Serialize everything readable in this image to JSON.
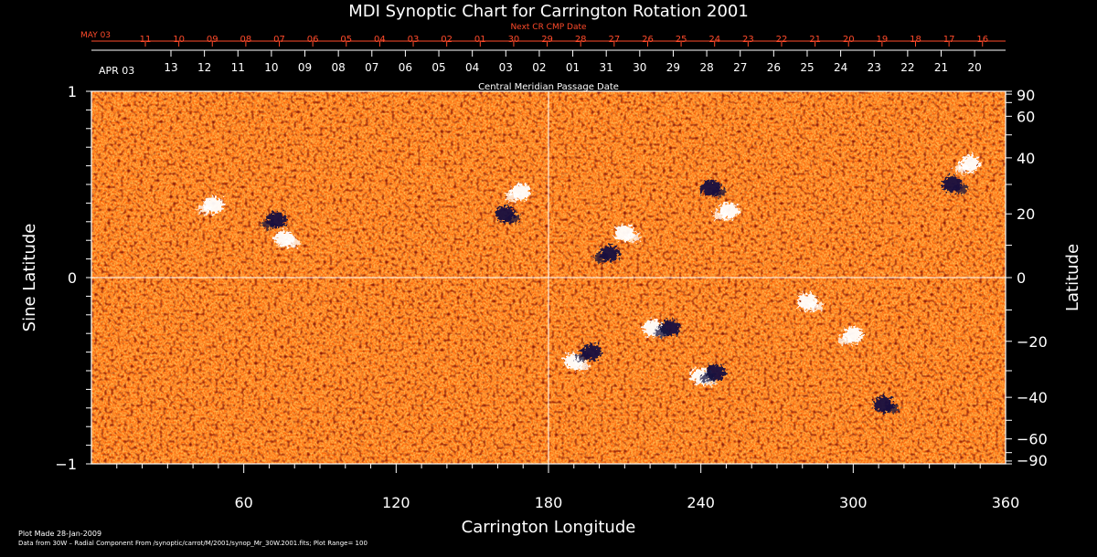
{
  "chart_data": {
    "type": "heatmap",
    "title": "MDI Synoptic Chart for Carrington Rotation 2001",
    "xlabel": "Carrington Longitude",
    "ylabel_left": "Sine Latitude",
    "ylabel_right": "Latitude",
    "xlim": [
      0,
      360
    ],
    "ylim": [
      -1,
      1
    ],
    "x_ticks": [
      "60",
      "120",
      "180",
      "240",
      "300",
      "360"
    ],
    "y_ticks_left": [
      "1",
      "0",
      "−1"
    ],
    "y_ticks_right": [
      "90",
      "60",
      "40",
      "20",
      "0",
      "−20",
      "−40",
      "−60",
      "−90"
    ],
    "next_cr_axis": {
      "label": "Next CR CMP Date",
      "month_label": "MAY 03",
      "ticks": [
        "11",
        "10",
        "09",
        "08",
        "07",
        "06",
        "05",
        "04",
        "03",
        "02",
        "01",
        "30",
        "29",
        "28",
        "27",
        "26",
        "25",
        "24",
        "23",
        "22",
        "21",
        "20",
        "19",
        "18",
        "17",
        "16"
      ]
    },
    "cmp_axis": {
      "label": "Central Meridian Passage Date",
      "month_label": "APR 03",
      "ticks": [
        "13",
        "12",
        "11",
        "10",
        "09",
        "08",
        "07",
        "06",
        "05",
        "04",
        "03",
        "02",
        "01",
        "31",
        "30",
        "29",
        "28",
        "27",
        "26",
        "25",
        "24",
        "23",
        "22",
        "21",
        "20"
      ]
    },
    "grid": true,
    "colormap": [
      "#15123f",
      "#8b1a08",
      "#d83a02",
      "#ff6a0c",
      "#ffb24a",
      "#ffffff"
    ],
    "plot_range": 100,
    "active_regions": [
      {
        "lon": 73,
        "sinlat": 0.31,
        "polarity": "negative"
      },
      {
        "lon": 76,
        "sinlat": 0.21,
        "polarity": "positive"
      },
      {
        "lon": 48,
        "sinlat": 0.39,
        "polarity": "positive"
      },
      {
        "lon": 163,
        "sinlat": 0.34,
        "polarity": "negative"
      },
      {
        "lon": 169,
        "sinlat": 0.46,
        "polarity": "positive"
      },
      {
        "lon": 210,
        "sinlat": 0.24,
        "polarity": "positive"
      },
      {
        "lon": 204,
        "sinlat": 0.13,
        "polarity": "negative"
      },
      {
        "lon": 244,
        "sinlat": 0.48,
        "polarity": "negative"
      },
      {
        "lon": 251,
        "sinlat": 0.36,
        "polarity": "positive"
      },
      {
        "lon": 221,
        "sinlat": -0.27,
        "polarity": "positive"
      },
      {
        "lon": 228,
        "sinlat": -0.27,
        "polarity": "negative"
      },
      {
        "lon": 240,
        "sinlat": -0.53,
        "polarity": "positive"
      },
      {
        "lon": 246,
        "sinlat": -0.51,
        "polarity": "negative"
      },
      {
        "lon": 190,
        "sinlat": -0.45,
        "polarity": "positive"
      },
      {
        "lon": 197,
        "sinlat": -0.4,
        "polarity": "negative"
      },
      {
        "lon": 339,
        "sinlat": 0.5,
        "polarity": "negative"
      },
      {
        "lon": 346,
        "sinlat": 0.61,
        "polarity": "positive"
      },
      {
        "lon": 282,
        "sinlat": -0.13,
        "polarity": "positive"
      },
      {
        "lon": 300,
        "sinlat": -0.31,
        "polarity": "positive"
      },
      {
        "lon": 312,
        "sinlat": -0.68,
        "polarity": "negative"
      }
    ]
  },
  "footer": {
    "plot_made": "Plot Made 28-Jan-2009",
    "data_source": "Data from 30W – Radial Component From /synoptic/carrot/M/2001/synop_Mr_30W.2001.fits; Plot Range=  100"
  }
}
